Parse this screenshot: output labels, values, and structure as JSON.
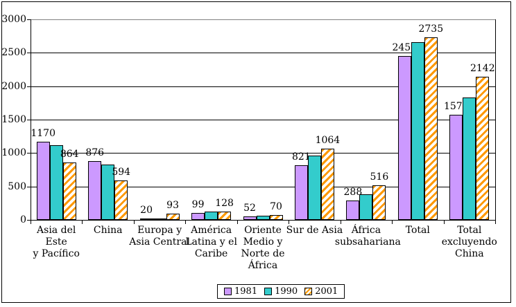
{
  "chart_data": {
    "type": "bar",
    "title": "",
    "xlabel": "",
    "ylabel": "",
    "categories": [
      "Asia del Este y Pacífico",
      "China",
      "Europa y Asia Central",
      "América Latina y el Caribe",
      "Oriente Medio y Norte de África",
      "Sur de Asia",
      "África subsahariana",
      "Total",
      "Total excluyendo China"
    ],
    "category_label_lines": [
      [
        "Asia del Este",
        "y Pacífico"
      ],
      [
        "China"
      ],
      [
        "Europa y",
        "Asia Central"
      ],
      [
        "América",
        "Latina y el",
        "Caribe"
      ],
      [
        "Oriente",
        "Medio y",
        "Norte de",
        "África"
      ],
      [
        "Sur de Asia"
      ],
      [
        "África",
        "subsahariana"
      ],
      [
        "Total"
      ],
      [
        "Total",
        "excluyendo",
        "China"
      ]
    ],
    "series": [
      {
        "name": "1981",
        "color": "#CC99FF",
        "hatch": false,
        "show_labels": true,
        "values": [
          1170,
          876,
          20,
          99,
          52,
          821,
          288,
          2450,
          1574
        ]
      },
      {
        "name": "1990",
        "color": "#33CCCC",
        "hatch": false,
        "show_labels": false,
        "values": [
          1116,
          825,
          23,
          125,
          61,
          958,
          380,
          2654,
          1829
        ]
      },
      {
        "name": "2001",
        "color": "#FF9900",
        "hatch": true,
        "show_labels": true,
        "values": [
          864,
          594,
          93,
          128,
          70,
          1064,
          516,
          2735,
          2142
        ]
      }
    ],
    "yticks": [
      0,
      500,
      1000,
      1500,
      2000,
      2500,
      3000
    ],
    "ylim": [
      0,
      3000
    ],
    "ytick_step": 500,
    "grid": true,
    "legend_position": "bottom",
    "legend": [
      "1981",
      "1990",
      "2001"
    ],
    "colors": {
      "series_1981": "#CC99FF",
      "series_1990": "#33CCCC",
      "series_2001_hatch": "#FF9900",
      "axis": "#000000",
      "gridline": "#000000",
      "top_gridline": "#808080",
      "background": "#FFFFFF"
    }
  }
}
